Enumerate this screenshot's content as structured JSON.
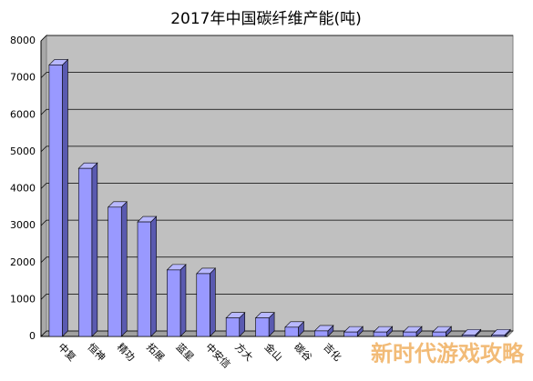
{
  "chart_data": {
    "type": "bar3d",
    "title": "2017年中国碳纤维产能(吨)",
    "categories": [
      "中复",
      "恒神",
      "精功",
      "拓展",
      "蓝星",
      "中安信",
      "方大",
      "金山",
      "碳谷",
      "吉化",
      null,
      null,
      null,
      null,
      null,
      null
    ],
    "values": [
      7350,
      4550,
      3500,
      3100,
      1800,
      1700,
      500,
      500,
      250,
      150,
      120,
      120,
      120,
      120,
      40,
      40
    ],
    "color": "#9999ff",
    "ylim": [
      0,
      8000
    ],
    "yticks": [
      0,
      1000,
      2000,
      3000,
      4000,
      5000,
      6000,
      7000,
      8000
    ],
    "grid": true
  },
  "watermark": "新时代游戏攻略"
}
